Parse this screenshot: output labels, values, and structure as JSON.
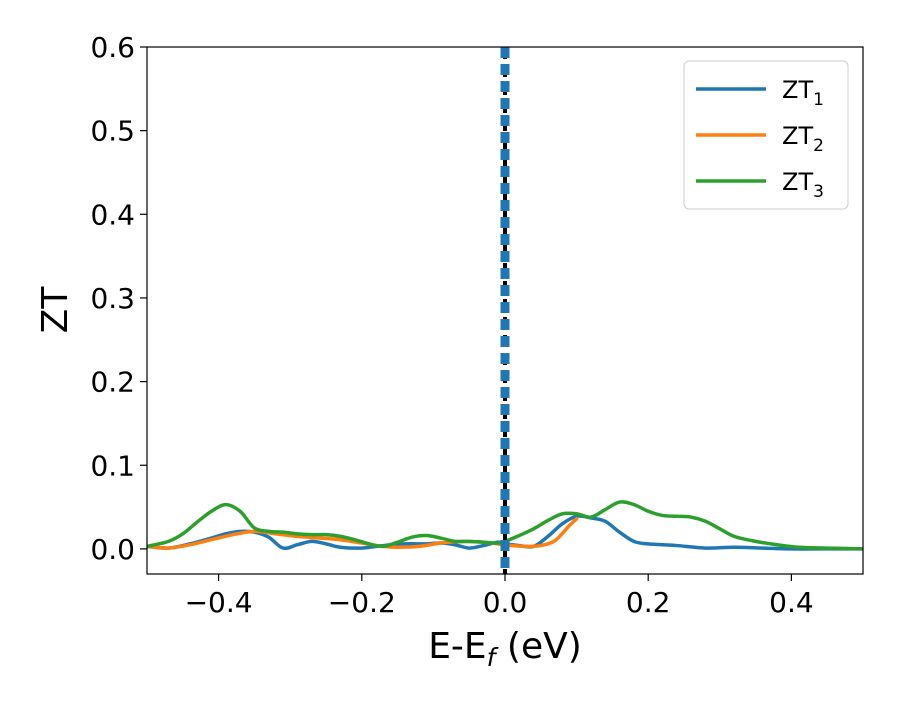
{
  "chart_data": {
    "type": "line",
    "xlabel": "E-E",
    "xlabel_sub": "f",
    "xlabel_unit": " (eV)",
    "ylabel": "ZT",
    "xlim": [
      -0.5,
      0.5
    ],
    "ylim": [
      -0.03,
      0.6
    ],
    "xticks": [
      -0.4,
      -0.2,
      0.0,
      0.2,
      0.4
    ],
    "xtick_labels": [
      "−0.4",
      "−0.2",
      "0.0",
      "0.2",
      "0.4"
    ],
    "yticks": [
      0.0,
      0.1,
      0.2,
      0.3,
      0.4,
      0.5,
      0.6
    ],
    "ytick_labels": [
      "0.0",
      "0.1",
      "0.2",
      "0.3",
      "0.4",
      "0.5",
      "0.6"
    ],
    "grid": false,
    "legend_position": "top-right",
    "vertical_lines": [
      {
        "x": 0.0,
        "color": "#000000",
        "style": "dashed"
      },
      {
        "x": 0.0,
        "color": "#1f77b4",
        "style": "dashed"
      }
    ],
    "series": [
      {
        "name": "ZT",
        "name_sub": "1",
        "color": "#1f77b4",
        "x": [
          -0.5,
          -0.47,
          -0.44,
          -0.41,
          -0.39,
          -0.37,
          -0.35,
          -0.33,
          -0.31,
          -0.29,
          -0.27,
          -0.25,
          -0.23,
          -0.2,
          -0.17,
          -0.14,
          -0.11,
          -0.09,
          -0.07,
          -0.05,
          -0.03,
          -0.01,
          0.0,
          0.02,
          0.04,
          0.06,
          0.08,
          0.1,
          0.12,
          0.14,
          0.16,
          0.18,
          0.2,
          0.24,
          0.28,
          0.32,
          0.36,
          0.4,
          0.45,
          0.5
        ],
        "y": [
          0.003,
          0.001,
          0.006,
          0.013,
          0.018,
          0.021,
          0.02,
          0.014,
          0.001,
          0.005,
          0.009,
          0.006,
          0.002,
          0.001,
          0.004,
          0.006,
          0.006,
          0.007,
          0.005,
          0.001,
          0.004,
          0.008,
          0.006,
          0.004,
          0.003,
          0.015,
          0.03,
          0.039,
          0.037,
          0.033,
          0.02,
          0.009,
          0.006,
          0.004,
          0.001,
          0.002,
          0.001,
          0.0,
          0.0,
          0.0
        ]
      },
      {
        "name": "ZT",
        "name_sub": "2",
        "color": "#ff7f0e",
        "x": [
          -0.5,
          -0.47,
          -0.44,
          -0.41,
          -0.38,
          -0.35,
          -0.32,
          -0.29,
          -0.26,
          -0.23,
          -0.2,
          -0.17,
          -0.15,
          -0.12,
          -0.09,
          -0.06,
          -0.03,
          -0.01,
          0.0,
          0.01,
          0.03,
          0.05,
          0.07,
          0.09,
          0.1
        ],
        "y": [
          0.003,
          0.001,
          0.005,
          0.011,
          0.017,
          0.021,
          0.018,
          0.015,
          0.013,
          0.011,
          0.007,
          0.003,
          0.002,
          0.003,
          0.007,
          0.009,
          0.008,
          0.006,
          0.005,
          0.004,
          0.003,
          0.004,
          0.01,
          0.028,
          0.036
        ]
      },
      {
        "name": "ZT",
        "name_sub": "3",
        "color": "#2ca02c",
        "x": [
          -0.5,
          -0.47,
          -0.45,
          -0.43,
          -0.41,
          -0.39,
          -0.37,
          -0.35,
          -0.33,
          -0.31,
          -0.29,
          -0.27,
          -0.25,
          -0.23,
          -0.21,
          -0.19,
          -0.17,
          -0.15,
          -0.13,
          -0.11,
          -0.09,
          -0.07,
          -0.05,
          -0.03,
          -0.01,
          0.0,
          0.02,
          0.04,
          0.06,
          0.08,
          0.1,
          0.12,
          0.14,
          0.16,
          0.18,
          0.2,
          0.22,
          0.24,
          0.26,
          0.28,
          0.3,
          0.32,
          0.35,
          0.38,
          0.41,
          0.45,
          0.5
        ],
        "y": [
          0.003,
          0.009,
          0.018,
          0.032,
          0.045,
          0.053,
          0.045,
          0.025,
          0.021,
          0.02,
          0.018,
          0.017,
          0.017,
          0.015,
          0.011,
          0.006,
          0.003,
          0.008,
          0.014,
          0.016,
          0.013,
          0.009,
          0.009,
          0.008,
          0.007,
          0.009,
          0.016,
          0.024,
          0.034,
          0.042,
          0.042,
          0.038,
          0.047,
          0.056,
          0.053,
          0.045,
          0.04,
          0.039,
          0.038,
          0.033,
          0.024,
          0.015,
          0.009,
          0.005,
          0.002,
          0.001,
          0.0
        ]
      }
    ]
  }
}
